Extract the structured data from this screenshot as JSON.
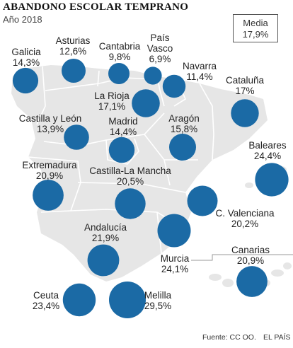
{
  "title": "ABANDONO ESCOLAR TEMPRANO",
  "subtitle": "Año 2018",
  "legend": {
    "label": "Media",
    "value": "17,9%"
  },
  "colors": {
    "bubble": "#1b6aa5",
    "land": "#e6e6e6",
    "border": "#ffffff"
  },
  "regions": [
    {
      "name": "Galicia",
      "value": "14,3%",
      "pct": 14.3
    },
    {
      "name": "Asturias",
      "value": "12,6%",
      "pct": 12.6
    },
    {
      "name": "Cantabria",
      "value": "9,8%",
      "pct": 9.8
    },
    {
      "name": "País Vasco",
      "value": "6,9%",
      "pct": 6.9
    },
    {
      "name": "Navarra",
      "value": "11,4%",
      "pct": 11.4
    },
    {
      "name": "Cataluña",
      "value": "17%",
      "pct": 17.0
    },
    {
      "name": "La Rioja",
      "value": "17,1%",
      "pct": 17.1
    },
    {
      "name": "Castilla y León",
      "value": "13,9%",
      "pct": 13.9
    },
    {
      "name": "Madrid",
      "value": "14,4%",
      "pct": 14.4
    },
    {
      "name": "Aragón",
      "value": "15,8%",
      "pct": 15.8
    },
    {
      "name": "Baleares",
      "value": "24,4%",
      "pct": 24.4
    },
    {
      "name": "Extremadura",
      "value": "20,9%",
      "pct": 20.9
    },
    {
      "name": "Castilla-La Mancha",
      "value": "20,5%",
      "pct": 20.5
    },
    {
      "name": "C. Valenciana",
      "value": "20,2%",
      "pct": 20.2
    },
    {
      "name": "Andalucía",
      "value": "21,9%",
      "pct": 21.9
    },
    {
      "name": "Murcia",
      "value": "24,1%",
      "pct": 24.1
    },
    {
      "name": "Canarias",
      "value": "20,9%",
      "pct": 20.9
    },
    {
      "name": "Ceuta",
      "value": "23,4%",
      "pct": 23.4
    },
    {
      "name": "Melilla",
      "value": "29,5%",
      "pct": 29.5
    }
  ],
  "source": "Fuente: CC OO.",
  "credit": "EL PAÍS"
}
